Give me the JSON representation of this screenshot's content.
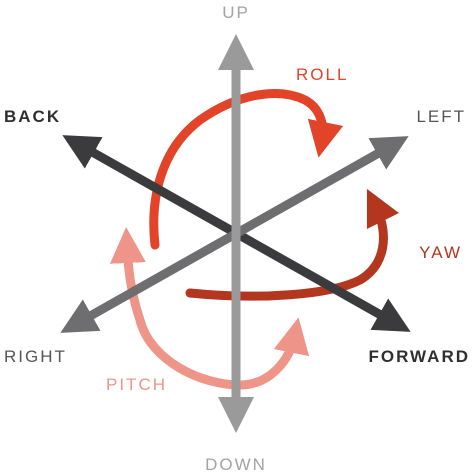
{
  "labels": {
    "up": "UP",
    "down": "DOWN",
    "back": "BACK",
    "left": "LEFT",
    "right": "RIGHT",
    "forward": "FORWARD",
    "roll": "ROLL",
    "yaw": "YAW",
    "pitch": "PITCH"
  },
  "colors": {
    "vertical_axis": "#9a9a9b",
    "back_forward_axis": "#3b3b3d",
    "left_right_axis": "#6e6e70",
    "up_down_text": "#a3a3a5",
    "roll": "#e2442a",
    "yaw": "#b3361f",
    "pitch": "#ef9488",
    "dark_text": "#2f2f31",
    "mid_text": "#555557"
  }
}
